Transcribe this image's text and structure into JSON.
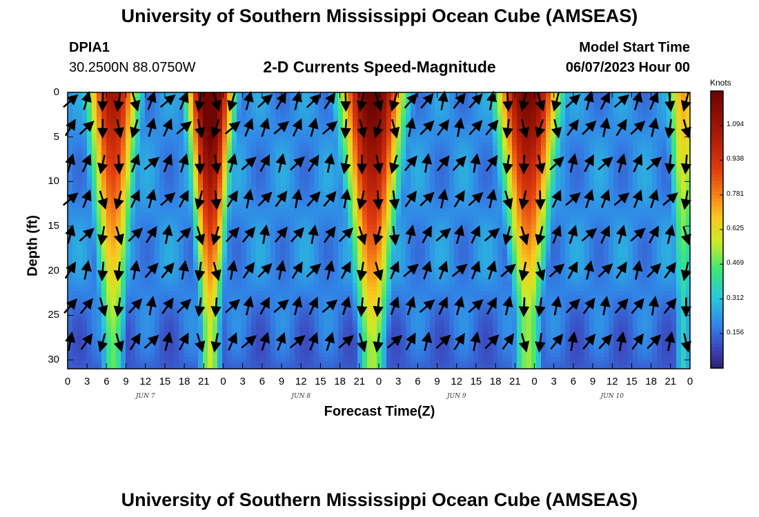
{
  "header": {
    "title": "University of Southern Mississippi Ocean Cube (AMSEAS)",
    "station_id": "DPIA1",
    "station_coords": "30.2500N  88.0750W",
    "chart_title": "2-D Currents Speed-Magnitude",
    "model_start_label": "Model Start Time",
    "model_start_value": "06/07/2023 Hour 00"
  },
  "footer": {
    "title": "University of Southern Mississippi Ocean Cube (AMSEAS)"
  },
  "chart_data": {
    "type": "heatmap",
    "title": "2-D Currents Speed-Magnitude",
    "xlabel": "Forecast Time(Z)",
    "ylabel": "Depth (ft)",
    "x_ticks": [
      "0",
      "3",
      "6",
      "9",
      "12",
      "15",
      "18",
      "21",
      "0",
      "3",
      "6",
      "9",
      "12",
      "15",
      "18",
      "21",
      "0",
      "3",
      "6",
      "9",
      "12",
      "15",
      "18",
      "21",
      "0",
      "3",
      "6",
      "9",
      "12",
      "15",
      "18",
      "21",
      "0"
    ],
    "x_hours": [
      0,
      3,
      6,
      9,
      12,
      15,
      18,
      21,
      24,
      27,
      30,
      33,
      36,
      39,
      42,
      45,
      48,
      51,
      54,
      57,
      60,
      63,
      66,
      69,
      72,
      75,
      78,
      81,
      84,
      87,
      90,
      93,
      96
    ],
    "xlim": [
      0,
      96
    ],
    "day_labels": [
      {
        "label": "JUN 7",
        "hour": 12
      },
      {
        "label": "JUN 8",
        "hour": 36
      },
      {
        "label": "JUN 9",
        "hour": 60
      },
      {
        "label": "JUN 10",
        "hour": 84
      }
    ],
    "y_ticks": [
      "0",
      "5",
      "10",
      "15",
      "20",
      "25",
      "30"
    ],
    "y_values": [
      0,
      5,
      10,
      15,
      20,
      25,
      30
    ],
    "ylim": [
      0,
      31
    ],
    "colorbar": {
      "units": "Knots",
      "ticks": [
        "1.094",
        "0.938",
        "0.781",
        "0.625",
        "0.469",
        "0.312",
        "0.156"
      ],
      "tick_values": [
        1.094,
        0.938,
        0.781,
        0.625,
        0.469,
        0.312,
        0.156
      ],
      "range": [
        0,
        1.25
      ]
    },
    "high_speed_bands": [
      {
        "center_hour": 7,
        "peak": 0.95,
        "surface_halfwidth_h": 3.5,
        "bottom_depth_ft": 24
      },
      {
        "center_hour": 22,
        "peak": 1.25,
        "surface_halfwidth_h": 3.0,
        "bottom_depth_ft": 22
      },
      {
        "center_hour": 47,
        "peak": 1.15,
        "surface_halfwidth_h": 4.5,
        "bottom_depth_ft": 24
      },
      {
        "center_hour": 71,
        "peak": 1.1,
        "surface_halfwidth_h": 4.5,
        "bottom_depth_ft": 21
      },
      {
        "center_hour": 95,
        "peak": 0.6,
        "surface_halfwidth_h": 2.0,
        "bottom_depth_ft": 20
      }
    ],
    "vectors": {
      "time_step_h": 2.5,
      "depth_levels_ft": [
        1,
        4,
        8,
        12,
        16,
        20,
        24,
        28
      ],
      "note": "direction of current at each grid point; flood = northeast, ebb = south"
    }
  }
}
